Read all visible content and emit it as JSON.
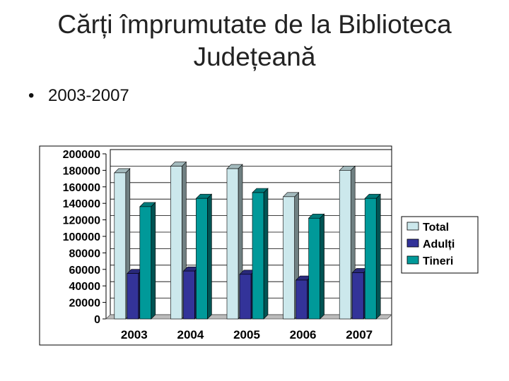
{
  "slide": {
    "title_line1": "Cărți împrumutate de la Biblioteca",
    "title_line2": "Județeană",
    "bullet_symbol": "•",
    "bullet_text": "2003-2007"
  },
  "chart_data": {
    "type": "bar",
    "title": "",
    "xlabel": "",
    "ylabel": "",
    "categories": [
      "2003",
      "2004",
      "2005",
      "2006",
      "2007"
    ],
    "ylim": [
      0,
      200000
    ],
    "yticks": [
      "0",
      "20000",
      "40000",
      "60000",
      "80000",
      "100000",
      "120000",
      "140000",
      "160000",
      "180000",
      "200000"
    ],
    "grid": true,
    "legend_position": "right",
    "series": [
      {
        "name": "Total",
        "color": "#cce8ec",
        "values": [
          177000,
          185000,
          182000,
          148000,
          180000
        ]
      },
      {
        "name": "Adulți",
        "color": "#333399",
        "values": [
          55000,
          58000,
          54000,
          47000,
          56000
        ]
      },
      {
        "name": "Tineri",
        "color": "#009999",
        "values": [
          136000,
          146000,
          153000,
          122000,
          146000
        ]
      }
    ]
  }
}
